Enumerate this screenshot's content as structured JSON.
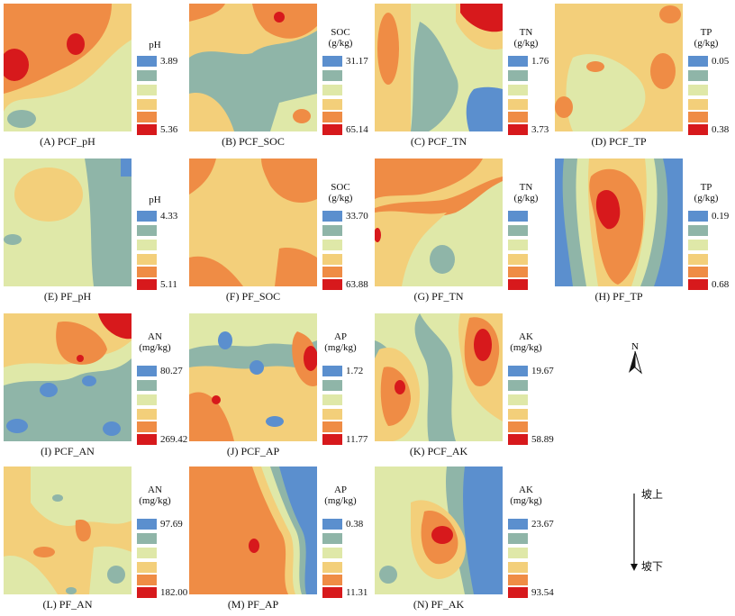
{
  "colors": {
    "c1": "#5b8fce",
    "c2": "#8fb5a8",
    "c3": "#dfe8a8",
    "c4": "#f3cf7a",
    "c5": "#ef8c45",
    "c6": "#d7191c"
  },
  "panels": [
    {
      "id": "A",
      "caption": "(A) PCF_pH",
      "legend_title": "pH",
      "min": "3.89",
      "max": "5.36"
    },
    {
      "id": "B",
      "caption": "(B) PCF_SOC",
      "legend_title": "SOC (g/kg)",
      "min": "31.17",
      "max": "65.14"
    },
    {
      "id": "C",
      "caption": "(C) PCF_TN",
      "legend_title": "TN (g/kg)",
      "min": "1.76",
      "max": "3.73"
    },
    {
      "id": "D",
      "caption": "(D) PCF_TP",
      "legend_title": "TP (g/kg)",
      "min": "0.05",
      "max": "0.38"
    },
    {
      "id": "E",
      "caption": "(E) PF_pH",
      "legend_title": "pH",
      "min": "4.33",
      "max": "5.11"
    },
    {
      "id": "F",
      "caption": "(F) PF_SOC",
      "legend_title": "SOC (g/kg)",
      "min": "33.70",
      "max": "63.88"
    },
    {
      "id": "G",
      "caption": "(G) PF_TN",
      "legend_title": "TN (g/kg)",
      "min": "",
      "max": ""
    },
    {
      "id": "H",
      "caption": "(H) PF_TP",
      "legend_title": "TP (g/kg)",
      "min": "0.19",
      "max": "0.68"
    },
    {
      "id": "I",
      "caption": "(I) PCF_AN",
      "legend_title": "AN (mg/kg)",
      "min": "80.27",
      "max": "269.42"
    },
    {
      "id": "J",
      "caption": "(J) PCF_AP",
      "legend_title": "AP (mg/kg)",
      "min": "1.72",
      "max": "11.77"
    },
    {
      "id": "K",
      "caption": "(K) PCF_AK",
      "legend_title": "AK (mg/kg)",
      "min": "19.67",
      "max": "58.89"
    },
    {
      "id": "L",
      "caption": "(L) PF_AN",
      "legend_title": "AN (mg/kg)",
      "min": "97.69",
      "max": "182.00"
    },
    {
      "id": "M",
      "caption": "(M) PF_AP",
      "legend_title": "AP (mg/kg)",
      "min": "0.38",
      "max": "11.31"
    },
    {
      "id": "N",
      "caption": "(N) PF_AK",
      "legend_title": "AK (mg/kg)",
      "min": "23.67",
      "max": "93.54"
    }
  ],
  "north": {
    "label": "N"
  },
  "slope": {
    "top": "坡上",
    "bottom": "坡下"
  }
}
